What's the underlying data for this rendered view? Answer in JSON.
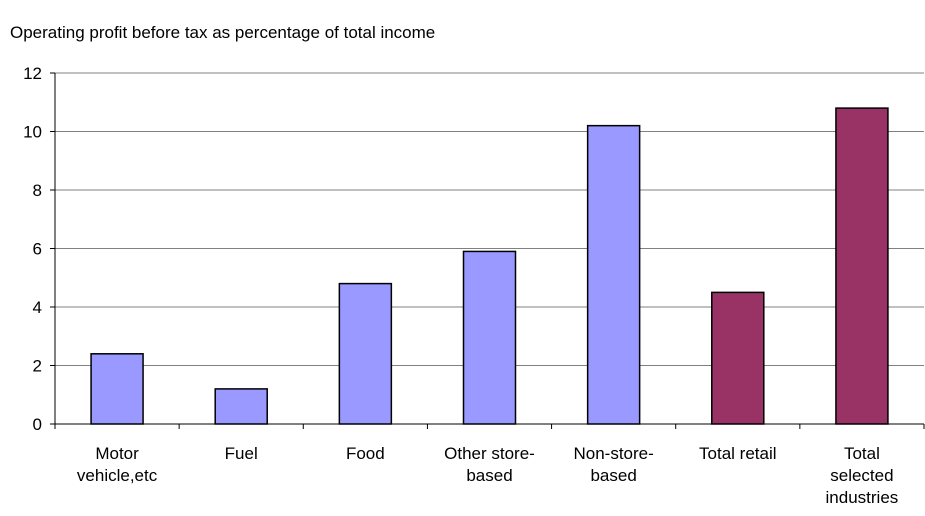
{
  "chart_data": {
    "type": "bar",
    "title": "Operating profit before tax as percentage of total income",
    "categories": [
      "Motor\nvehicle,etc",
      "Fuel",
      "Food",
      "Other store-\nbased",
      "Non-store-\nbased",
      "Total retail",
      "Total\nselected\nindustries"
    ],
    "values": [
      2.4,
      1.2,
      4.8,
      5.9,
      10.2,
      4.5,
      10.8
    ],
    "colors": [
      "#9999ff",
      "#9999ff",
      "#9999ff",
      "#9999ff",
      "#9999ff",
      "#993366",
      "#993366"
    ],
    "ylim": [
      0,
      12
    ],
    "yticks": [
      0,
      2,
      4,
      6,
      8,
      10,
      12
    ],
    "grid": true
  }
}
